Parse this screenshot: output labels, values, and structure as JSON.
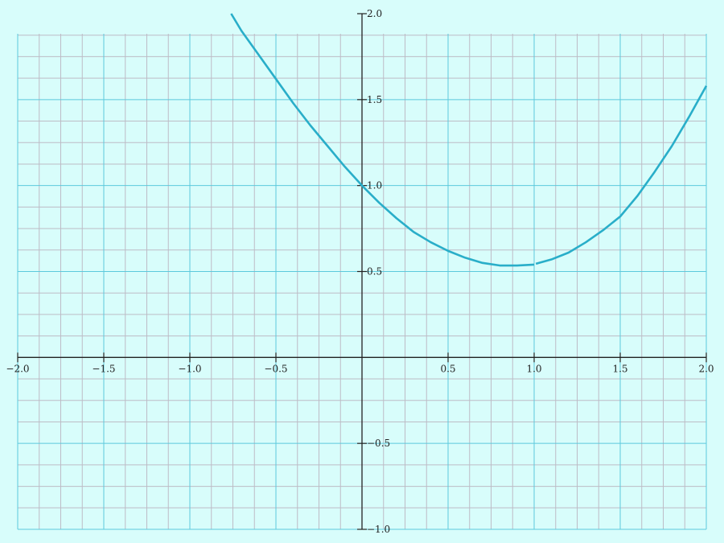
{
  "colors": {
    "background": "#d8fdfb",
    "minor_grid": "#bdbcc6",
    "major_grid": "#5cc9dc",
    "axis": "#222222",
    "curve": "#29aec9"
  },
  "chart_data": {
    "type": "line",
    "title": "",
    "xlabel": "",
    "ylabel": "",
    "xlim": [
      -2.0,
      2.0
    ],
    "ylim": [
      -1.0,
      2.0
    ],
    "grid": true,
    "minor_grid_step": 0.125,
    "major_grid_step": 0.5,
    "x_ticks": [
      {
        "value": -2.0,
        "label": "−2.0"
      },
      {
        "value": -1.5,
        "label": "−1.5"
      },
      {
        "value": -1.0,
        "label": "−1.0"
      },
      {
        "value": -0.5,
        "label": "−0.5"
      },
      {
        "value": 0.5,
        "label": "0.5"
      },
      {
        "value": 1.0,
        "label": "1.0"
      },
      {
        "value": 1.5,
        "label": "1.5"
      },
      {
        "value": 2.0,
        "label": "2.0"
      }
    ],
    "y_ticks": [
      {
        "value": 2.0,
        "label": "2.0"
      },
      {
        "value": 1.5,
        "label": "1.5"
      },
      {
        "value": 1.0,
        "label": "1.0"
      },
      {
        "value": 0.5,
        "label": "0.5"
      },
      {
        "value": -0.5,
        "label": "−0.5"
      },
      {
        "value": -1.0,
        "label": "−1.0"
      }
    ],
    "series": [
      {
        "segments": [
          {
            "x": [
              -0.76,
              -0.7,
              -0.6,
              -0.5,
              -0.4,
              -0.3,
              -0.2,
              -0.1,
              0.0,
              0.1,
              0.2,
              0.3,
              0.4,
              0.5,
              0.6,
              0.7,
              0.8,
              0.9,
              1.0
            ],
            "y": [
              2.0,
              1.9,
              1.76,
              1.62,
              1.48,
              1.35,
              1.23,
              1.11,
              1.0,
              0.9,
              0.81,
              0.73,
              0.67,
              0.62,
              0.58,
              0.55,
              0.535,
              0.535,
              0.54
            ]
          },
          {
            "x": [
              1.01,
              1.1,
              1.2,
              1.3,
              1.4,
              1.5,
              1.6,
              1.7,
              1.8,
              1.9,
              2.0
            ],
            "y": [
              0.545,
              0.57,
              0.61,
              0.67,
              0.74,
              0.82,
              0.94,
              1.08,
              1.23,
              1.4,
              1.58
            ]
          }
        ]
      }
    ]
  }
}
